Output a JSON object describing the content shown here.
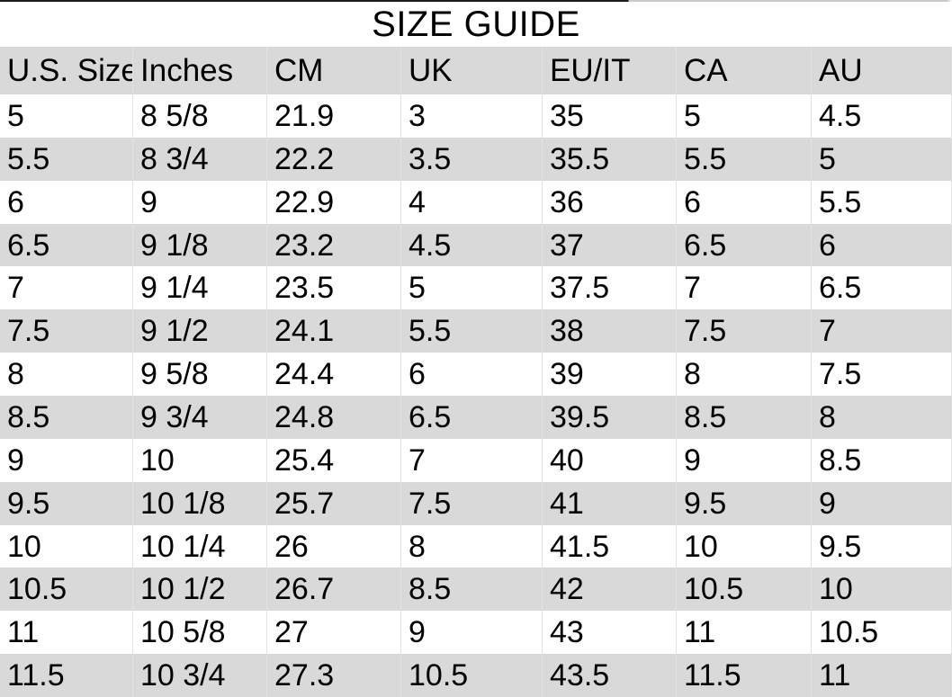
{
  "title": "SIZE GUIDE",
  "table": {
    "columns": [
      "U.S. Size",
      "Inches",
      "CM",
      "UK",
      "EU/IT",
      "CA",
      "AU"
    ],
    "rows": [
      [
        "5",
        "8 5/8",
        "21.9",
        "3",
        "35",
        "5",
        "4.5"
      ],
      [
        "5.5",
        "8 3/4",
        "22.2",
        "3.5",
        "35.5",
        "5.5",
        "5"
      ],
      [
        "6",
        "9",
        "22.9",
        "4",
        "36",
        "6",
        "5.5"
      ],
      [
        "6.5",
        "9 1/8",
        "23.2",
        "4.5",
        "37",
        "6.5",
        "6"
      ],
      [
        "7",
        "9 1/4",
        "23.5",
        "5",
        "37.5",
        "7",
        "6.5"
      ],
      [
        "7.5",
        "9 1/2",
        "24.1",
        "5.5",
        "38",
        "7.5",
        "7"
      ],
      [
        "8",
        "9 5/8",
        "24.4",
        "6",
        "39",
        "8",
        "7.5"
      ],
      [
        "8.5",
        "9 3/4",
        "24.8",
        "6.5",
        "39.5",
        "8.5",
        "8"
      ],
      [
        "9",
        "10",
        "25.4",
        "7",
        "40",
        "9",
        "8.5"
      ],
      [
        "9.5",
        "10 1/8",
        "25.7",
        "7.5",
        "41",
        "9.5",
        "9"
      ],
      [
        "10",
        "10 1/4",
        "26",
        "8",
        "41.5",
        "10",
        "9.5"
      ],
      [
        "10.5",
        "10 1/2",
        "26.7",
        "8.5",
        "42",
        "10.5",
        "10"
      ],
      [
        "11",
        "10 5/8",
        "27",
        "9",
        "43",
        "11",
        "10.5"
      ],
      [
        "11.5",
        "10 3/4",
        "27.3",
        "10.5",
        "43.5",
        "11.5",
        "11"
      ]
    ]
  },
  "colors": {
    "background": "#ffffff",
    "row_band": "#d9d9d9",
    "gridline": "#e2e2e2",
    "text": "#000000"
  }
}
